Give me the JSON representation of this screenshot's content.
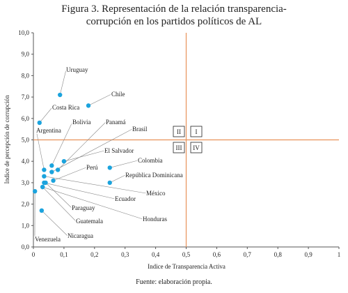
{
  "chart_data": {
    "type": "scatter",
    "title": [
      "Figura 3. Representación de la relación transparencia-",
      "corrupción en los partidos políticos de AL"
    ],
    "x_label": "Indice de Transparencia Activa",
    "y_label": "Indice de percepción de corrupción",
    "source": "Fuente: elaboración propia.",
    "color": "#1ba3dd",
    "ref_color": "#e8925a",
    "xlim": [
      0,
      1
    ],
    "ylim": [
      0,
      10
    ],
    "xticks": [
      0,
      {
        "value": 0.1,
        "label": "0,1"
      },
      {
        "value": 0.2,
        "label": "0,2"
      },
      {
        "value": 0.3,
        "label": "0,3"
      },
      {
        "value": 0.4,
        "label": "0,4"
      },
      {
        "value": 0.5,
        "label": "0,5"
      },
      {
        "value": 0.6,
        "label": "0,6"
      },
      {
        "value": 0.7,
        "label": "0,7"
      },
      {
        "value": 0.8,
        "label": "0,8"
      },
      {
        "value": 0.9,
        "label": "0,9"
      },
      1
    ],
    "yticks": [
      {
        "value": 0,
        "label": "0,0"
      },
      {
        "value": 1,
        "label": "1,0"
      },
      {
        "value": 2,
        "label": "2,0"
      },
      {
        "value": 3,
        "label": "3,0"
      },
      {
        "value": 4,
        "label": "4,0"
      },
      {
        "value": 5,
        "label": "5,0"
      },
      {
        "value": 6,
        "label": "6,0"
      },
      {
        "value": 7,
        "label": "7,0"
      },
      {
        "value": 8,
        "label": "8,0"
      },
      {
        "value": 9,
        "label": "9,0"
      },
      {
        "value": 10,
        "label": "10,0"
      }
    ],
    "reference_lines": {
      "x": 0.5,
      "y": 5
    },
    "quadrants": [
      "II",
      "I",
      "III",
      "IV"
    ],
    "labels": [
      "Uruguay",
      "Chile",
      "Costa Rica",
      "Argentina",
      "Bolivia",
      "Panamá",
      "Brasil",
      "El Salvador",
      "Perú",
      "Colombia",
      "República Dominicana",
      "México",
      "Ecuador",
      "Honduras",
      "Paraguay",
      "Guatemala",
      "Nicaragua",
      "Venezuela"
    ],
    "x": [
      0.087,
      0.18,
      0.02,
      0.035,
      0.06,
      0.08,
      0.06,
      0.1,
      0.065,
      0.25,
      0.25,
      0.035,
      0.035,
      0.03,
      0.04,
      0.03,
      0.027,
      0.005
    ],
    "values": [
      7.1,
      6.6,
      5.8,
      3.6,
      3.8,
      3.6,
      3.5,
      4.0,
      3.1,
      3.7,
      3.0,
      3.3,
      3.0,
      2.8,
      3.0,
      2.8,
      1.7,
      2.6
    ]
  }
}
